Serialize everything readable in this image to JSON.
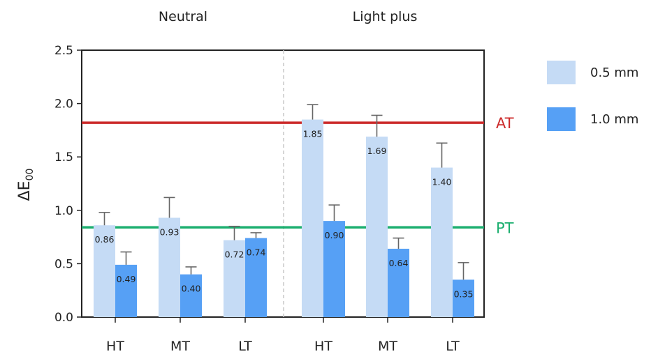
{
  "chart_data": {
    "type": "bar",
    "ylabel_main": "ΔE",
    "ylabel_sub": "00",
    "ylim": [
      0,
      2.5
    ],
    "yticks": [
      "0.0",
      "0.5",
      "1.0",
      "1.5",
      "2.0",
      "2.5"
    ],
    "ytick_values": [
      0,
      0.5,
      1.0,
      1.5,
      2.0,
      2.5
    ],
    "groups": [
      {
        "label": "Neutral",
        "categories": [
          "HT",
          "MT",
          "LT"
        ]
      },
      {
        "label": "Light plus",
        "categories": [
          "HT",
          "MT",
          "LT"
        ]
      }
    ],
    "categories": [
      "HT",
      "MT",
      "LT",
      "HT",
      "MT",
      "LT"
    ],
    "series": [
      {
        "name": "0.5 mm",
        "color": "#c5dbf5",
        "values": [
          0.86,
          0.93,
          0.72,
          1.85,
          1.69,
          1.4
        ],
        "errors": [
          0.12,
          0.19,
          0.13,
          0.14,
          0.2,
          0.23
        ],
        "labels": [
          "0.86",
          "0.93",
          "0.72",
          "1.85",
          "1.69",
          "1.40"
        ]
      },
      {
        "name": "1.0 mm",
        "color": "#56a0f5",
        "values": [
          0.49,
          0.4,
          0.74,
          0.9,
          0.64,
          0.35
        ],
        "errors": [
          0.12,
          0.07,
          0.05,
          0.15,
          0.1,
          0.16
        ],
        "labels": [
          "0.49",
          "0.40",
          "0.74",
          "0.90",
          "0.64",
          "0.35"
        ]
      }
    ],
    "reference_lines": [
      {
        "label": "AT",
        "value": 1.82,
        "color": "#cc2a2a"
      },
      {
        "label": "PT",
        "value": 0.84,
        "color": "#1aae6e"
      }
    ],
    "legend_position": "right",
    "grid": false
  }
}
